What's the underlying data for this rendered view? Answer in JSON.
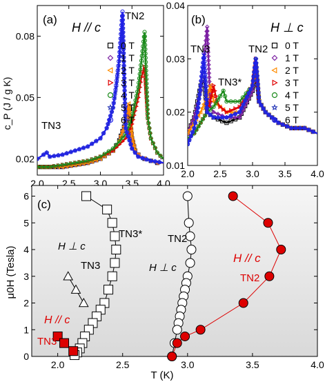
{
  "chart_data": [
    {
      "panel": "(a)",
      "type": "line",
      "title": "",
      "field_label": "H // c",
      "ylabel": "c_P (J / g K)",
      "xlabel": "",
      "xlim": [
        2.0,
        4.0
      ],
      "ylim": [
        0.012,
        0.095
      ],
      "xticks": [
        "2.0",
        "2.5",
        "3.0",
        "3.5",
        "4.0"
      ],
      "yticks": [
        "0.02",
        "0.05",
        "0.08"
      ],
      "yticks_values": [
        0.02,
        0.05,
        0.08
      ],
      "annotations": [
        "TN2",
        "TN3"
      ],
      "series": [
        {
          "name": "0 T",
          "marker": "square",
          "color": "#000000",
          "x": [
            2.0,
            2.2,
            2.4,
            2.6,
            2.8,
            3.0,
            3.2,
            3.3,
            3.4,
            3.45,
            3.5,
            3.55,
            3.6,
            3.7,
            3.8,
            3.9,
            4.0
          ],
          "y": [
            0.016,
            0.016,
            0.016,
            0.017,
            0.018,
            0.02,
            0.024,
            0.029,
            0.038,
            0.045,
            0.03,
            0.024,
            0.022,
            0.02,
            0.019,
            0.018,
            0.018
          ]
        },
        {
          "name": "1 T",
          "marker": "diamond",
          "color": "#7b1fa2",
          "x": [
            2.0,
            2.2,
            2.4,
            2.6,
            2.8,
            3.0,
            3.2,
            3.3,
            3.4,
            3.45,
            3.5,
            3.55,
            3.6,
            3.7,
            3.8,
            3.9,
            4.0
          ],
          "y": [
            0.016,
            0.016,
            0.016,
            0.017,
            0.018,
            0.02,
            0.024,
            0.029,
            0.038,
            0.046,
            0.03,
            0.024,
            0.022,
            0.02,
            0.019,
            0.018,
            0.018
          ]
        },
        {
          "name": "2 T",
          "marker": "triangle-left",
          "color": "#ff8c00",
          "x": [
            2.0,
            2.2,
            2.4,
            2.6,
            2.8,
            3.0,
            3.2,
            3.3,
            3.4,
            3.45,
            3.5,
            3.55,
            3.6,
            3.7,
            3.8,
            3.9,
            4.0
          ],
          "y": [
            0.016,
            0.016,
            0.016,
            0.017,
            0.018,
            0.02,
            0.024,
            0.029,
            0.038,
            0.047,
            0.031,
            0.024,
            0.022,
            0.02,
            0.019,
            0.018,
            0.018
          ]
        },
        {
          "name": "3 T",
          "marker": "triangle-right",
          "color": "#e00000",
          "x": [
            2.0,
            2.2,
            2.4,
            2.6,
            2.8,
            3.0,
            3.2,
            3.4,
            3.5,
            3.6,
            3.65,
            3.7,
            3.75,
            3.8,
            3.9,
            4.0
          ],
          "y": [
            0.016,
            0.016,
            0.017,
            0.018,
            0.019,
            0.021,
            0.024,
            0.03,
            0.037,
            0.05,
            0.06,
            0.065,
            0.04,
            0.03,
            0.023,
            0.02
          ]
        },
        {
          "name": "4 T",
          "marker": "circle",
          "color": "#1a8a1a",
          "x": [
            2.0,
            2.2,
            2.4,
            2.6,
            2.8,
            3.0,
            3.2,
            3.4,
            3.5,
            3.6,
            3.65,
            3.7,
            3.75,
            3.8,
            3.9,
            4.0
          ],
          "y": [
            0.016,
            0.016,
            0.017,
            0.018,
            0.019,
            0.021,
            0.025,
            0.032,
            0.04,
            0.055,
            0.068,
            0.082,
            0.04,
            0.03,
            0.023,
            0.02
          ]
        },
        {
          "name": "5 T",
          "marker": "star",
          "color": "#2a3ab8",
          "x": [
            2.0,
            2.1,
            2.15,
            2.2,
            2.4,
            2.6,
            2.8,
            3.0,
            3.1,
            3.2,
            3.25,
            3.3,
            3.35,
            3.4,
            3.5,
            3.6,
            3.8,
            4.0
          ],
          "y": [
            0.02,
            0.022,
            0.023,
            0.021,
            0.022,
            0.024,
            0.026,
            0.03,
            0.035,
            0.045,
            0.055,
            0.068,
            0.09,
            0.035,
            0.025,
            0.021,
            0.019,
            0.018
          ]
        },
        {
          "name": "6 T",
          "marker": "circle",
          "color": "#2020e8",
          "x": [
            2.0,
            2.1,
            2.15,
            2.2,
            2.4,
            2.6,
            2.8,
            3.0,
            3.1,
            3.2,
            3.25,
            3.3,
            3.35,
            3.4,
            3.5,
            3.6,
            3.8,
            4.0
          ],
          "y": [
            0.02,
            0.022,
            0.023,
            0.021,
            0.022,
            0.024,
            0.026,
            0.03,
            0.035,
            0.045,
            0.056,
            0.07,
            0.092,
            0.035,
            0.025,
            0.021,
            0.019,
            0.018
          ]
        }
      ]
    },
    {
      "panel": "(b)",
      "type": "line",
      "title": "",
      "field_label": "H ⊥ c",
      "ylabel": "",
      "xlabel": "",
      "xlim": [
        2.0,
        4.0
      ],
      "ylim": [
        0.01,
        0.04
      ],
      "xticks": [
        "2.0",
        "2.5",
        "3.0",
        "3.5",
        "4.0"
      ],
      "yticks": [
        "0.01",
        "0.02",
        "0.03",
        "0.04"
      ],
      "yticks_values": [
        0.01,
        0.02,
        0.03,
        0.04
      ],
      "annotations": [
        "TN3",
        "TN3*",
        "TN2"
      ],
      "series": [
        {
          "name": "0 T",
          "marker": "square",
          "color": "#000000",
          "x": [
            2.0,
            2.1,
            2.15,
            2.2,
            2.25,
            2.3,
            2.4,
            2.6,
            2.8,
            3.0,
            3.05,
            3.1,
            3.2,
            3.4,
            3.6,
            3.8,
            4.0
          ],
          "y": [
            0.016,
            0.019,
            0.022,
            0.025,
            0.026,
            0.02,
            0.019,
            0.018,
            0.019,
            0.024,
            0.029,
            0.022,
            0.02,
            0.018,
            0.017,
            0.017,
            0.016
          ]
        },
        {
          "name": "1 T",
          "marker": "diamond",
          "color": "#7b1fa2",
          "x": [
            2.0,
            2.1,
            2.2,
            2.25,
            2.3,
            2.35,
            2.4,
            2.6,
            2.8,
            3.0,
            3.05,
            3.1,
            3.2,
            3.4,
            3.6,
            3.8,
            4.0
          ],
          "y": [
            0.016,
            0.019,
            0.024,
            0.03,
            0.036,
            0.021,
            0.02,
            0.019,
            0.019,
            0.024,
            0.029,
            0.022,
            0.02,
            0.018,
            0.017,
            0.017,
            0.016
          ]
        },
        {
          "name": "2 T",
          "marker": "triangle-left",
          "color": "#ff8c00",
          "x": [
            2.0,
            2.1,
            2.2,
            2.3,
            2.35,
            2.4,
            2.5,
            2.6,
            2.8,
            3.0,
            3.05,
            3.1,
            3.2,
            3.4,
            3.6,
            3.8,
            4.0
          ],
          "y": [
            0.016,
            0.018,
            0.02,
            0.023,
            0.025,
            0.022,
            0.021,
            0.02,
            0.02,
            0.025,
            0.029,
            0.022,
            0.02,
            0.018,
            0.017,
            0.017,
            0.016
          ]
        },
        {
          "name": "3 T",
          "marker": "triangle-right",
          "color": "#e00000",
          "x": [
            2.0,
            2.1,
            2.2,
            2.3,
            2.35,
            2.4,
            2.45,
            2.5,
            2.6,
            2.8,
            3.0,
            3.05,
            3.1,
            3.2,
            3.4,
            3.6,
            3.8,
            4.0
          ],
          "y": [
            0.015,
            0.016,
            0.018,
            0.02,
            0.022,
            0.025,
            0.022,
            0.021,
            0.02,
            0.021,
            0.025,
            0.03,
            0.022,
            0.02,
            0.018,
            0.017,
            0.017,
            0.016
          ]
        },
        {
          "name": "4 T",
          "marker": "circle",
          "color": "#1a8a1a",
          "x": [
            2.0,
            2.1,
            2.2,
            2.3,
            2.4,
            2.5,
            2.55,
            2.6,
            2.8,
            3.0,
            3.05,
            3.1,
            3.2,
            3.4,
            3.6,
            3.8,
            4.0
          ],
          "y": [
            0.015,
            0.016,
            0.018,
            0.02,
            0.021,
            0.023,
            0.024,
            0.022,
            0.022,
            0.025,
            0.03,
            0.022,
            0.02,
            0.018,
            0.017,
            0.017,
            0.016
          ]
        },
        {
          "name": "5 T",
          "marker": "star",
          "color": "#2a3ab8",
          "x": [
            2.0,
            2.1,
            2.15,
            2.2,
            2.25,
            2.3,
            2.4,
            2.6,
            2.8,
            3.0,
            3.05,
            3.1,
            3.2,
            3.4,
            3.6,
            3.8,
            4.0
          ],
          "y": [
            0.014,
            0.017,
            0.02,
            0.025,
            0.03,
            0.02,
            0.019,
            0.019,
            0.02,
            0.025,
            0.03,
            0.022,
            0.02,
            0.018,
            0.017,
            0.017,
            0.016
          ]
        },
        {
          "name": "6 T",
          "marker": "circle",
          "color": "#2020e8",
          "x": [
            2.0,
            2.1,
            2.15,
            2.2,
            2.25,
            2.3,
            2.4,
            2.6,
            2.8,
            3.0,
            3.05,
            3.1,
            3.2,
            3.4,
            3.6,
            3.8,
            4.0
          ],
          "y": [
            0.014,
            0.017,
            0.02,
            0.025,
            0.031,
            0.02,
            0.019,
            0.019,
            0.02,
            0.025,
            0.03,
            0.022,
            0.02,
            0.018,
            0.017,
            0.017,
            0.016
          ]
        }
      ]
    },
    {
      "panel": "(c)",
      "type": "scatter",
      "title": "",
      "xlabel": "T (K)",
      "ylabel": "μ0H (Tesla)",
      "xlim": [
        1.8,
        4.0
      ],
      "ylim": [
        0,
        6.4
      ],
      "xticks": [
        "2.0",
        "2.5",
        "3.0",
        "3.5",
        "4.0"
      ],
      "xticks_values": [
        2.0,
        2.5,
        3.0,
        3.5,
        4.0
      ],
      "yticks": [
        "0",
        "1",
        "2",
        "3",
        "4",
        "5",
        "6"
      ],
      "yticks_values": [
        0,
        1,
        2,
        3,
        4,
        5,
        6
      ],
      "grid": false,
      "labels": {
        "tn3_star": "TN3*",
        "perp_left": "H ⊥ c",
        "tn3_perp": "TN3",
        "par_left": "H // c",
        "tn3_par": "TN3",
        "tn2_perp": "TN2",
        "perp_right": "H ⊥ c",
        "par_right": "H // c",
        "tn2_par": "TN2"
      },
      "series": [
        {
          "name": "TN3* (H ⊥ c)",
          "marker": "square",
          "fill": "#ffffff",
          "color": "#000000",
          "x": [
            2.22,
            2.38,
            2.42,
            2.44,
            2.45,
            2.44,
            2.42,
            2.39,
            2.36,
            2.33,
            2.3,
            2.27,
            2.24,
            2.21,
            2.19,
            2.17,
            2.15,
            2.13
          ],
          "y": [
            6.0,
            5.5,
            5.0,
            4.5,
            4.0,
            3.5,
            3.0,
            2.5,
            2.0,
            1.75,
            1.5,
            1.25,
            1.0,
            0.75,
            0.5,
            0.3,
            0.15,
            0.05
          ]
        },
        {
          "name": "TN3 (H ⊥ c)",
          "marker": "triangle",
          "fill": "#ffffff",
          "color": "#000000",
          "x": [
            2.08,
            2.14,
            2.2
          ],
          "y": [
            3.0,
            2.5,
            2.0
          ]
        },
        {
          "name": "TN3 (H // c)",
          "marker": "square",
          "fill": "#dd0000",
          "color": "#000000",
          "x": [
            2.0,
            2.05,
            2.12
          ],
          "y": [
            0.75,
            0.5,
            0.2
          ]
        },
        {
          "name": "TN2 (H ⊥ c)",
          "marker": "circle",
          "fill": "#ffffff",
          "color": "#000000",
          "x": [
            3.0,
            3.01,
            3.02,
            3.03,
            3.02,
            3.0,
            2.99,
            2.98,
            2.97,
            2.96,
            2.95,
            2.94,
            2.93,
            2.92,
            2.9,
            2.88
          ],
          "y": [
            6.0,
            5.0,
            4.5,
            4.0,
            3.5,
            3.0,
            2.75,
            2.5,
            2.25,
            2.0,
            1.75,
            1.5,
            1.25,
            1.0,
            0.5,
            0.0
          ]
        },
        {
          "name": "TN2 (H // c)",
          "marker": "circle",
          "fill": "#dd0000",
          "color": "#000000",
          "x": [
            3.35,
            3.62,
            3.72,
            3.63,
            3.43,
            3.1,
            2.98,
            2.92,
            2.88
          ],
          "y": [
            6.0,
            5.0,
            4.0,
            3.0,
            2.0,
            1.0,
            0.75,
            0.5,
            0.0
          ]
        }
      ]
    }
  ]
}
